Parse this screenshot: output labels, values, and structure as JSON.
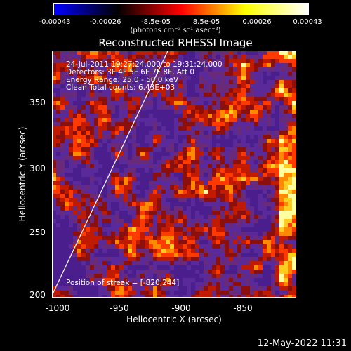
{
  "colorbar": {
    "ticks": [
      "-0.00043",
      "-0.00026",
      "-8.5e-05",
      "8.5e-05",
      "0.00026",
      "0.00043"
    ],
    "units": "(photons cm⁻² s⁻¹ asec⁻²)",
    "gradient": [
      "#0000ff",
      "#000000",
      "#ff0000",
      "#ffff00",
      "#ffffff"
    ]
  },
  "title": "Reconstructed RHESSI Image",
  "annotations": {
    "time": "24-Jul-2011 19:27:24.000 to 19:31:24.000",
    "detectors": "Detectors: 3F 4F 5F 6F 7F 8F, Att 0",
    "energy": "Energy Range: 25.0 - 50.0 keV",
    "clean": "Clean     Total counts: 6.43E+03",
    "position": "Position of streak = [-820,244]"
  },
  "axes": {
    "xlabel": "Heliocentric X (arcsec)",
    "ylabel": "Heliocentric Y (arcsec)",
    "xticks": [
      "-1000",
      "-950",
      "-900",
      "-850"
    ],
    "yticks": [
      "350",
      "300",
      "250",
      "200"
    ],
    "xlim": [
      -1000,
      -809
    ],
    "ylim": [
      198,
      390
    ]
  },
  "footer": "12-May-2022 11:31"
}
